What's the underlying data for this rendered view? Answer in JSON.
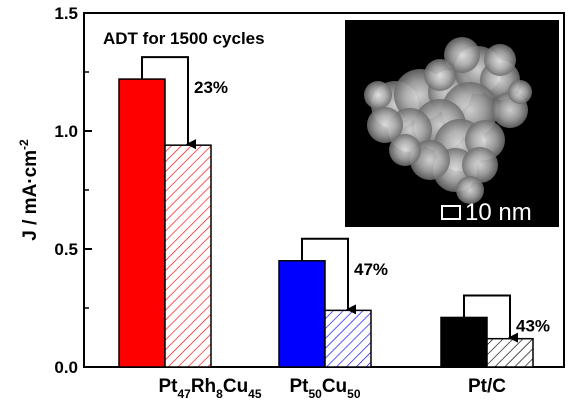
{
  "chart_data": {
    "type": "bar",
    "annotation": "ADT for 1500 cycles",
    "ylabel_parts": {
      "main": "J / mA·cm",
      "sup": "-2"
    },
    "ylim": [
      0,
      1.5
    ],
    "yticks": [
      "0.0",
      "0.5",
      "1.0",
      "1.5"
    ],
    "ytick_values": [
      0,
      0.5,
      1.0,
      1.5
    ],
    "categories": [
      {
        "parts": [
          [
            "Pt",
            ""
          ],
          [
            "47",
            "sub"
          ],
          [
            "Rh",
            ""
          ],
          [
            "8",
            "sub"
          ],
          [
            "Cu",
            ""
          ],
          [
            "45",
            "sub"
          ]
        ]
      },
      {
        "parts": [
          [
            "Pt",
            ""
          ],
          [
            "50",
            "sub"
          ],
          [
            "Cu",
            ""
          ],
          [
            "50",
            "sub"
          ]
        ]
      },
      {
        "parts": [
          [
            "Pt/C",
            ""
          ]
        ]
      }
    ],
    "series": [
      {
        "values": [
          1.22,
          0.45,
          0.21
        ],
        "colors": [
          "#ff0000",
          "#0000ff",
          "#000000"
        ],
        "style": "solid"
      },
      {
        "values": [
          0.94,
          0.24,
          0.12
        ],
        "colors": [
          "#ff0000",
          "#0000ff",
          "#000000"
        ],
        "style": "hatched"
      }
    ],
    "decrease_labels": [
      "23%",
      "47%",
      "43%"
    ],
    "grid": false
  },
  "inset": {
    "scale_bar_label": "10 nm"
  }
}
